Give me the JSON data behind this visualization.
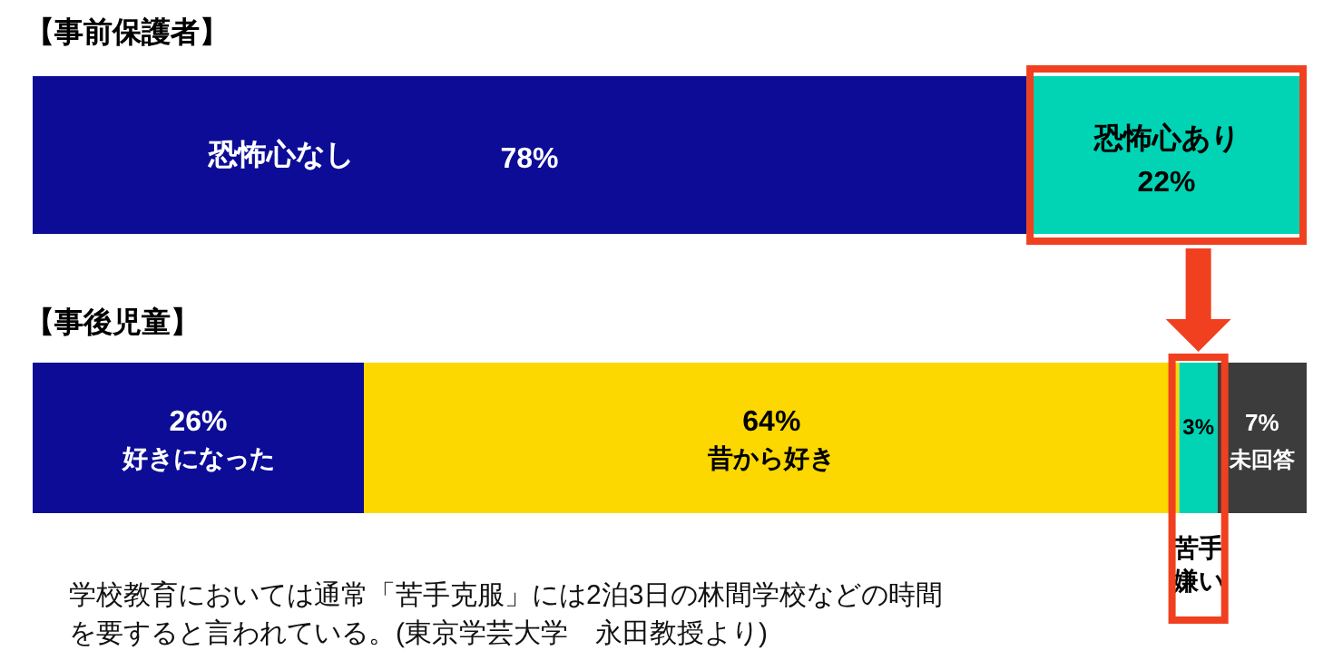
{
  "chart_data": [
    {
      "type": "bar",
      "title": "【事前保護者】",
      "categories": [
        null
      ],
      "orientation": "horizontal",
      "stacked": true,
      "xlim": [
        0,
        100
      ],
      "series": [
        {
          "name": "恐怖心なし",
          "color": "#0c0c96",
          "values": [
            78
          ],
          "value_labels": [
            "78%"
          ]
        },
        {
          "name": "恐怖心あり",
          "color": "#00d4b4",
          "values": [
            22
          ],
          "value_labels": [
            "22%"
          ]
        }
      ]
    },
    {
      "type": "bar",
      "title": "【事後児童】",
      "categories": [
        null
      ],
      "orientation": "horizontal",
      "stacked": true,
      "xlim": [
        0,
        100
      ],
      "series": [
        {
          "name": "好きになった",
          "color": "#0c0c96",
          "values": [
            26
          ],
          "value_labels": [
            "26%"
          ]
        },
        {
          "name": "昔から好き",
          "color": "#fcd800",
          "values": [
            64
          ],
          "value_labels": [
            "64%"
          ]
        },
        {
          "name": "苦手嫌い",
          "color": "#00d4b4",
          "values": [
            3
          ],
          "value_labels": [
            "3%"
          ]
        },
        {
          "name": "未回答",
          "color": "#3c3c3c",
          "values": [
            7
          ],
          "value_labels": [
            "7%"
          ]
        }
      ],
      "annotations": [
        "学校教育においては通常「苦手克服」には2泊3日の林間学校などの時間を要すると言われている。(東京学芸大学　永田教授より)"
      ]
    }
  ]
}
